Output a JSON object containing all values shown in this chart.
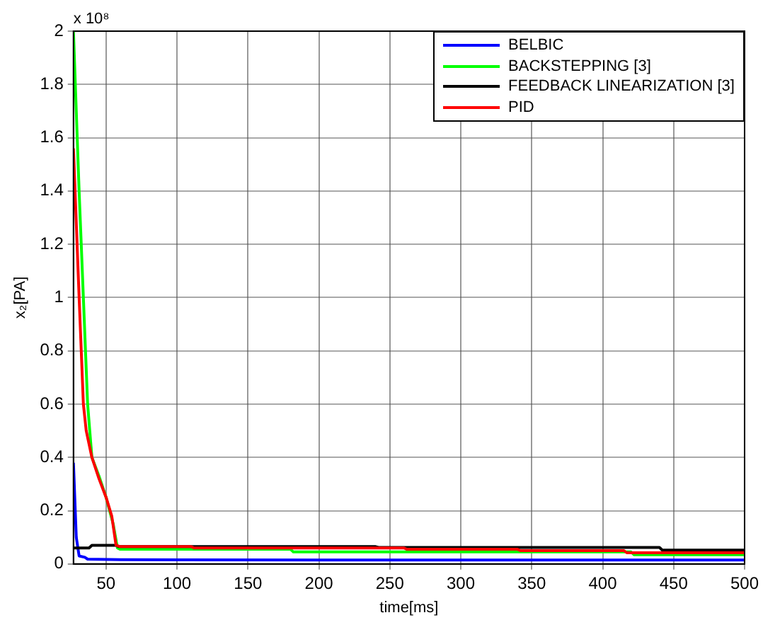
{
  "chart_data": {
    "type": "line",
    "xlabel": "time[ms]",
    "ylabel": "x₂[PA]",
    "annotations": [
      "x 10⁸"
    ],
    "xlim": [
      27,
      500
    ],
    "xticks": [
      50,
      100,
      150,
      200,
      250,
      300,
      350,
      400,
      450,
      500
    ],
    "ylim": [
      0,
      2
    ],
    "yticks": [
      0,
      0.2,
      0.4,
      0.6,
      0.8,
      1,
      1.2,
      1.4,
      1.6,
      1.8,
      2
    ],
    "grid": true,
    "legend": "top right",
    "marker": "none",
    "line_style": "solid",
    "series": [
      {
        "name": "BELBIC",
        "color": "#0000ff",
        "x": [
          27,
          29,
          31,
          35,
          37,
          60,
          200,
          500
        ],
        "values": [
          0.38,
          0.1,
          0.03,
          0.025,
          0.018,
          0.016,
          0.015,
          0.015
        ]
      },
      {
        "name": "BACKSTEPPING [3]",
        "color": "#00ff00",
        "x": [
          27,
          31,
          34,
          37,
          40,
          45,
          50,
          55,
          58,
          60,
          180,
          182,
          420,
          422,
          500
        ],
        "values": [
          2.0,
          1.4,
          1.0,
          0.6,
          0.4,
          0.33,
          0.25,
          0.15,
          0.06,
          0.055,
          0.055,
          0.045,
          0.045,
          0.035,
          0.035
        ]
      },
      {
        "name": "FEEDBACK LINEARIZATION [3]",
        "color": "#000000",
        "x": [
          27,
          38,
          40,
          57,
          59,
          240,
          242,
          440,
          442,
          500
        ],
        "values": [
          0.06,
          0.06,
          0.07,
          0.07,
          0.065,
          0.065,
          0.062,
          0.062,
          0.052,
          0.052
        ]
      },
      {
        "name": "PID",
        "color": "#ff0000",
        "x": [
          27,
          31,
          34,
          36,
          40,
          45,
          50,
          54,
          57,
          60,
          110,
          112,
          260,
          262,
          340,
          342,
          415,
          417,
          500
        ],
        "values": [
          1.56,
          1.0,
          0.6,
          0.5,
          0.4,
          0.32,
          0.25,
          0.18,
          0.07,
          0.065,
          0.065,
          0.06,
          0.06,
          0.055,
          0.055,
          0.05,
          0.05,
          0.042,
          0.042
        ]
      }
    ]
  }
}
